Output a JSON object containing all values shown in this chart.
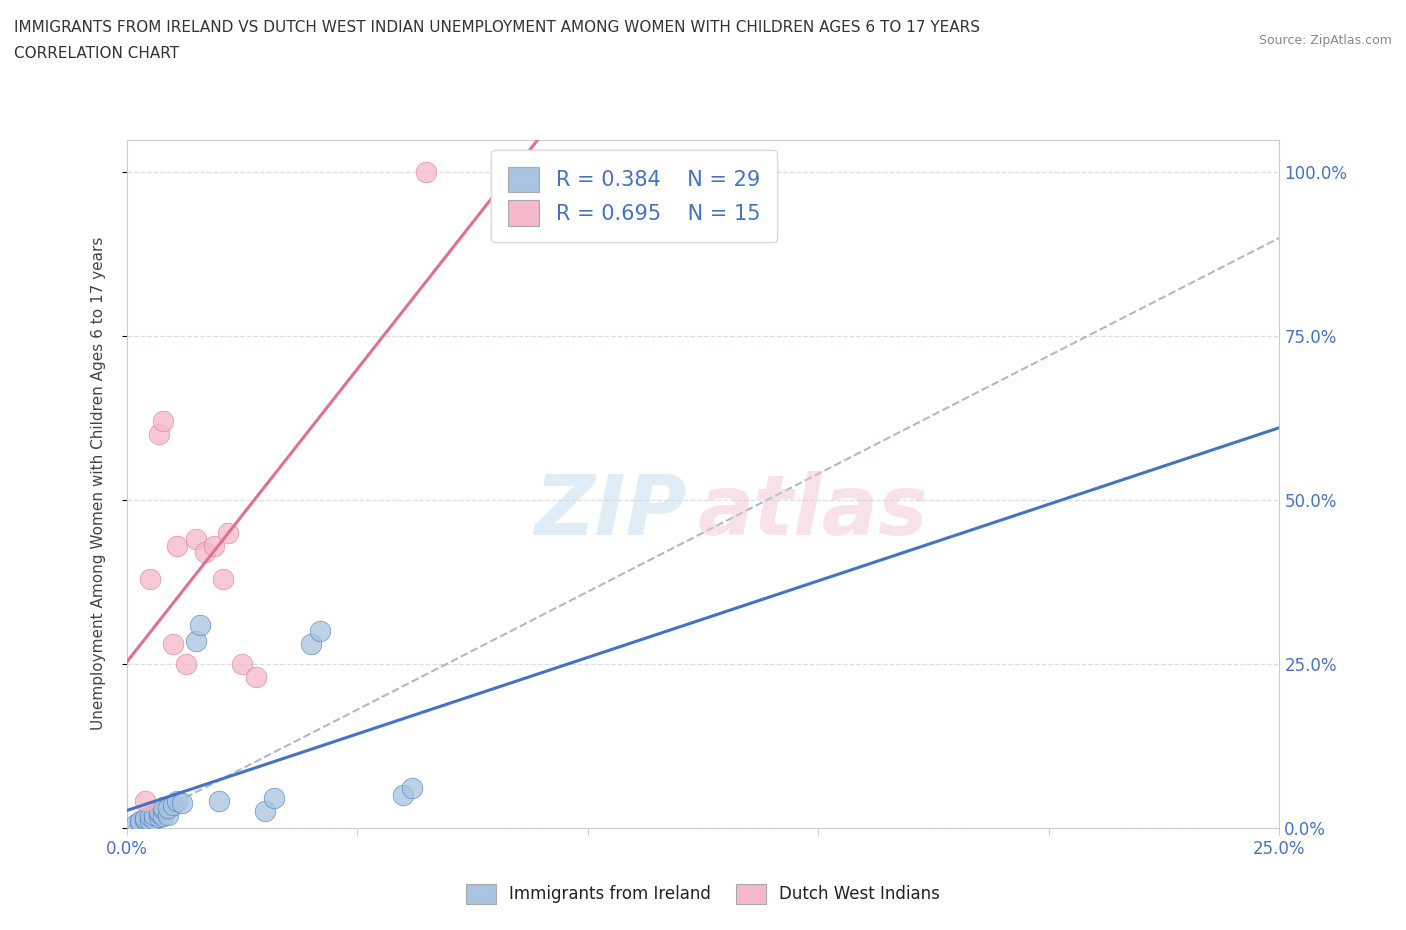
{
  "title_line1": "IMMIGRANTS FROM IRELAND VS DUTCH WEST INDIAN UNEMPLOYMENT AMONG WOMEN WITH CHILDREN AGES 6 TO 17 YEARS",
  "title_line2": "CORRELATION CHART",
  "source_text": "Source: ZipAtlas.com",
  "ylabel": "Unemployment Among Women with Children Ages 6 to 17 years",
  "xlim": [
    0.0,
    0.25
  ],
  "ylim": [
    0.0,
    1.05
  ],
  "yticks": [
    0.0,
    0.25,
    0.5,
    0.75,
    1.0
  ],
  "ytick_labels": [
    "0.0%",
    "25.0%",
    "50.0%",
    "75.0%",
    "100.0%"
  ],
  "blue_color": "#a8c4e0",
  "blue_line_color": "#4472c4",
  "pink_color": "#f4b8c8",
  "pink_line_color": "#e07090",
  "dash_line_color": "#b0b8c8",
  "ireland_R": 0.384,
  "ireland_N": 29,
  "dwi_R": 0.695,
  "dwi_N": 15,
  "legend_R_color": "#4472c4",
  "ireland_x": [
    0.002,
    0.003,
    0.003,
    0.004,
    0.004,
    0.005,
    0.005,
    0.006,
    0.006,
    0.007,
    0.007,
    0.007,
    0.008,
    0.008,
    0.008,
    0.009,
    0.009,
    0.01,
    0.011,
    0.012,
    0.015,
    0.016,
    0.02,
    0.03,
    0.032,
    0.04,
    0.042,
    0.06,
    0.062
  ],
  "ireland_y": [
    0.005,
    0.008,
    0.01,
    0.012,
    0.015,
    0.01,
    0.018,
    0.014,
    0.02,
    0.016,
    0.022,
    0.025,
    0.018,
    0.028,
    0.032,
    0.02,
    0.03,
    0.035,
    0.04,
    0.038,
    0.285,
    0.31,
    0.04,
    0.025,
    0.045,
    0.28,
    0.3,
    0.05,
    0.06
  ],
  "dwi_x": [
    0.004,
    0.005,
    0.007,
    0.008,
    0.01,
    0.011,
    0.013,
    0.015,
    0.017,
    0.019,
    0.021,
    0.022,
    0.025,
    0.028,
    0.065
  ],
  "dwi_y": [
    0.04,
    0.38,
    0.6,
    0.62,
    0.28,
    0.43,
    0.25,
    0.44,
    0.42,
    0.43,
    0.38,
    0.45,
    0.25,
    0.23,
    1.0
  ],
  "grid_color": "#d8dce8"
}
